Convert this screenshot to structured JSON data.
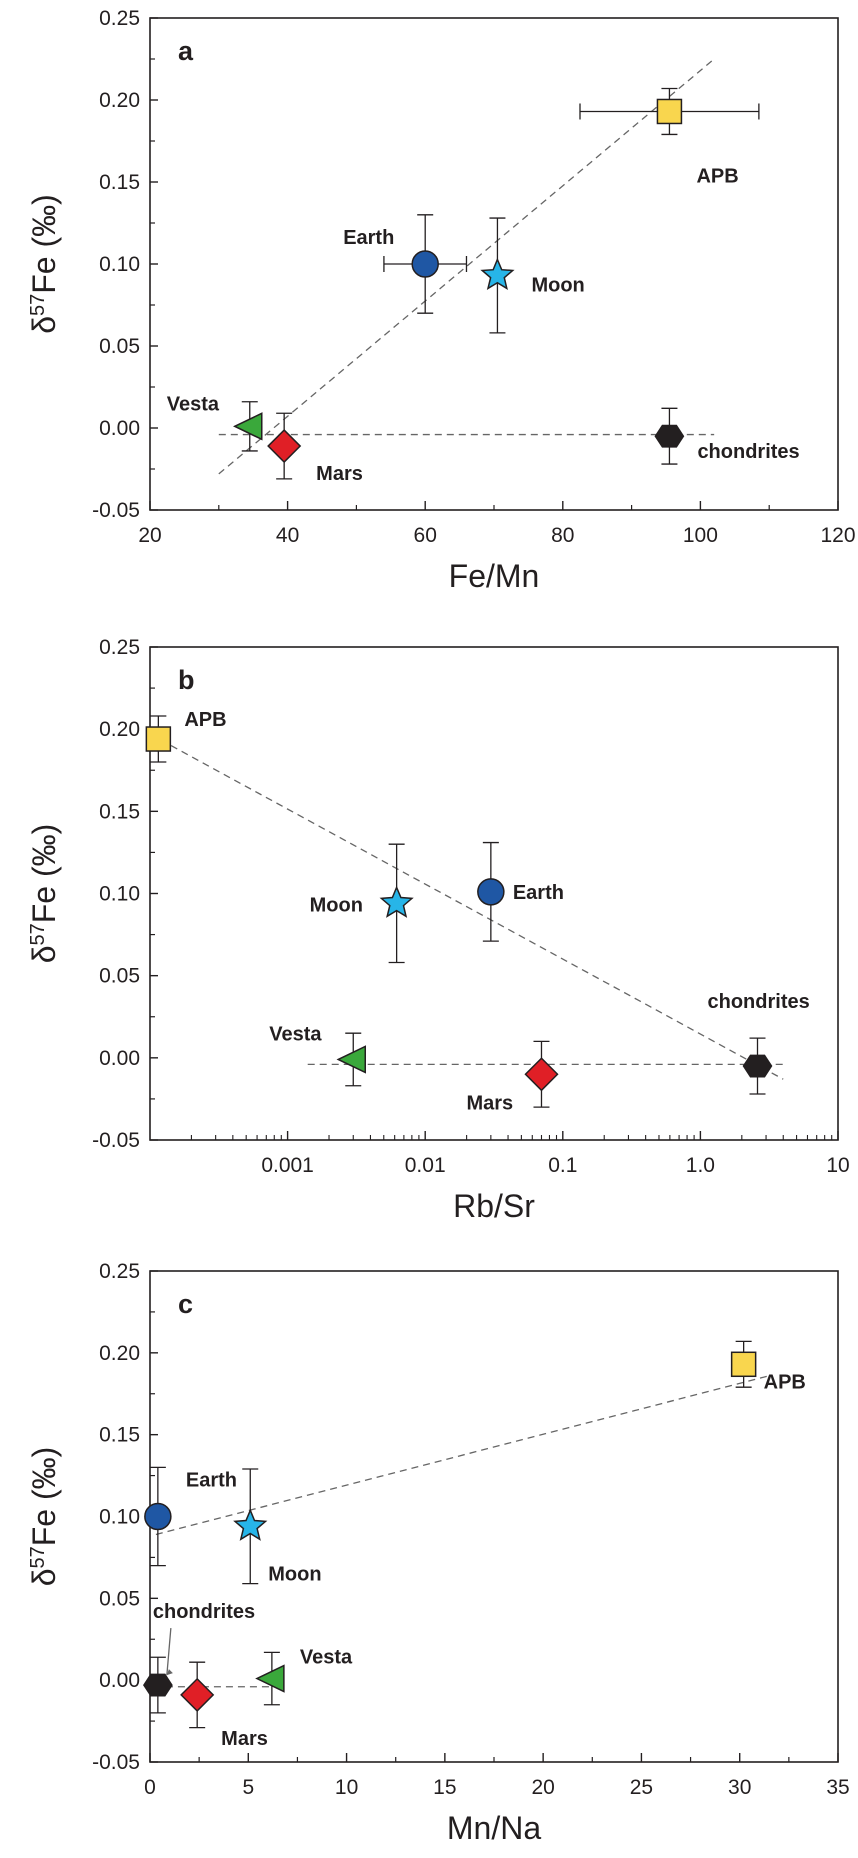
{
  "colors": {
    "APB": "#f9d64e",
    "Earth": "#1f57a4",
    "Moon": "#27b5e8",
    "Vesta": "#3aa83b",
    "Mars": "#e01f26",
    "chondrites": "#231f20",
    "axis": "#231f20",
    "fitline": "#666666"
  },
  "chart_data": [
    {
      "type": "scatter",
      "panel": "a",
      "xlabel": "Fe/Mn",
      "ylabel": "δ57Fe (‰)",
      "xscale": "linear",
      "xlim": [
        20,
        120
      ],
      "ylim": [
        -0.05,
        0.25
      ],
      "xticks": [
        "20",
        "40",
        "60",
        "80",
        "100",
        "120"
      ],
      "yticks": [
        "-0.05",
        "0.00",
        "0.05",
        "0.10",
        "0.15",
        "0.20",
        "0.25"
      ],
      "points": [
        {
          "name": "APB",
          "marker": "square",
          "x": 95.5,
          "y": 0.193,
          "yerr": 0.014,
          "xerr": 13,
          "label_pos": "below-right"
        },
        {
          "name": "Earth",
          "marker": "circle",
          "x": 60,
          "y": 0.1,
          "yerr": 0.03,
          "xerr": 6,
          "label_pos": "upper-left"
        },
        {
          "name": "Moon",
          "marker": "star",
          "x": 70.5,
          "y": 0.093,
          "yerr": 0.035,
          "label_pos": "right"
        },
        {
          "name": "Vesta",
          "marker": "triangle-left",
          "x": 34.5,
          "y": 0.001,
          "yerr": 0.015,
          "label_pos": "upper-left"
        },
        {
          "name": "Mars",
          "marker": "diamond",
          "x": 39.5,
          "y": -0.011,
          "yerr": 0.02,
          "label_pos": "below-right"
        },
        {
          "name": "chondrites",
          "marker": "hexagon",
          "x": 95.5,
          "y": -0.005,
          "yerr": 0.017,
          "label_pos": "right"
        }
      ],
      "fit_lines": [
        {
          "x": [
            30,
            102
          ],
          "y": [
            -0.028,
            0.225
          ]
        },
        {
          "x": [
            30,
            102
          ],
          "y": [
            -0.004,
            -0.004
          ]
        }
      ]
    },
    {
      "type": "scatter",
      "panel": "b",
      "xlabel": "Rb/Sr",
      "ylabel": "δ57Fe (‰)",
      "xscale": "log",
      "xlim": [
        0.0001,
        10
      ],
      "ylim": [
        -0.05,
        0.25
      ],
      "xticks": [
        {
          "value": 0.001,
          "label": "0.001"
        },
        {
          "value": 0.01,
          "label": "0.01"
        },
        {
          "value": 0.1,
          "label": "0.1"
        },
        {
          "value": 1,
          "label": "1.0"
        },
        {
          "value": 10,
          "label": "10"
        }
      ],
      "yticks": [
        "-0.05",
        "0.00",
        "0.05",
        "0.10",
        "0.15",
        "0.20",
        "0.25"
      ],
      "points": [
        {
          "name": "APB",
          "marker": "square",
          "x": 0.000115,
          "y": 0.194,
          "yerr": 0.014,
          "label_pos": "upper-right"
        },
        {
          "name": "Moon",
          "marker": "star",
          "x": 0.0062,
          "y": 0.094,
          "yerr": 0.036,
          "label_pos": "left"
        },
        {
          "name": "Earth",
          "marker": "circle",
          "x": 0.03,
          "y": 0.101,
          "yerr": 0.03,
          "label_pos": "right"
        },
        {
          "name": "Vesta",
          "marker": "triangle-left",
          "x": 0.003,
          "y": -0.001,
          "yerr": 0.016,
          "label_pos": "upper-left"
        },
        {
          "name": "Mars",
          "marker": "diamond",
          "x": 0.07,
          "y": -0.01,
          "yerr": 0.02,
          "label_pos": "lower-left"
        },
        {
          "name": "chondrites",
          "marker": "hexagon",
          "x": 2.6,
          "y": -0.005,
          "yerr": 0.017,
          "label_pos": "above"
        }
      ],
      "fit_lines": [
        {
          "x": [
            0.0001,
            4.0
          ],
          "y": [
            0.197,
            -0.013
          ]
        },
        {
          "x": [
            0.0014,
            4.0
          ],
          "y": [
            -0.004,
            -0.004
          ]
        }
      ]
    },
    {
      "type": "scatter",
      "panel": "c",
      "xlabel": "Mn/Na",
      "ylabel": "δ57Fe (‰)",
      "xscale": "linear",
      "xlim": [
        0,
        35
      ],
      "ylim": [
        -0.05,
        0.25
      ],
      "xticks": [
        "0",
        "5",
        "10",
        "15",
        "20",
        "25",
        "30",
        "35"
      ],
      "yticks": [
        "-0.05",
        "0.00",
        "0.05",
        "0.10",
        "0.15",
        "0.20",
        "0.25"
      ],
      "points": [
        {
          "name": "APB",
          "marker": "square",
          "x": 30.2,
          "y": 0.193,
          "yerr": 0.014,
          "label_pos": "below-right"
        },
        {
          "name": "Earth",
          "marker": "circle",
          "x": 0.4,
          "y": 0.1,
          "yerr": 0.03,
          "label_pos": "upper-right"
        },
        {
          "name": "Moon",
          "marker": "star",
          "x": 5.1,
          "y": 0.094,
          "yerr": 0.035,
          "label_pos": "below-right"
        },
        {
          "name": "chondrites",
          "marker": "hexagon",
          "x": 0.4,
          "y": -0.003,
          "yerr": 0.017,
          "label_pos": "above-arrow"
        },
        {
          "name": "Mars",
          "marker": "diamond",
          "x": 2.4,
          "y": -0.009,
          "yerr": 0.02,
          "label_pos": "below-right"
        },
        {
          "name": "Vesta",
          "marker": "triangle-left",
          "x": 6.2,
          "y": 0.001,
          "yerr": 0.016,
          "label_pos": "upper-right"
        }
      ],
      "fit_lines": [
        {
          "x": [
            0.3,
            31.5
          ],
          "y": [
            0.089,
            0.186
          ]
        },
        {
          "x": [
            0.2,
            6.5
          ],
          "y": [
            -0.004,
            -0.004
          ]
        }
      ]
    }
  ]
}
